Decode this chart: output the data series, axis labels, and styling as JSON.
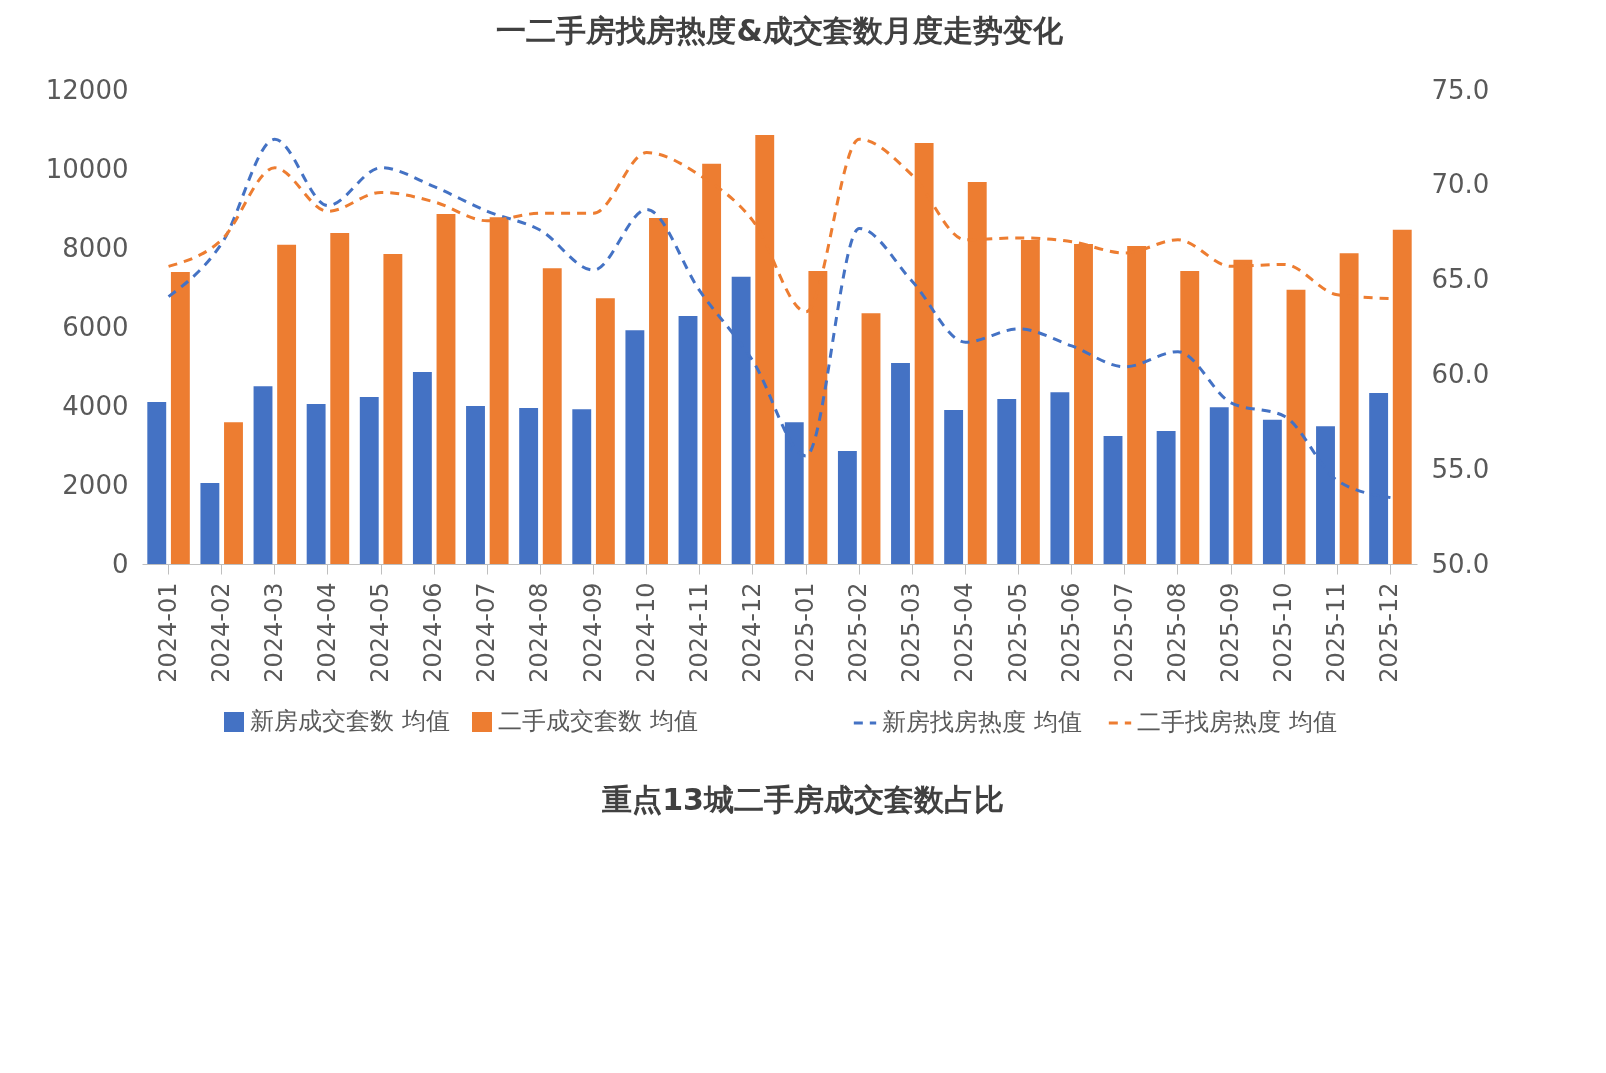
{
  "chart_data": {
    "type": "bar",
    "title": "一二手房找房热度&成交套数月度走势变化",
    "categories": [
      "2024-01",
      "2024-02",
      "2024-03",
      "2024-04",
      "2024-05",
      "2024-06",
      "2024-07",
      "2024-08",
      "2024-09",
      "2024-10",
      "2024-11",
      "2024-12",
      "2025-01",
      "2025-02",
      "2025-03",
      "2025-04",
      "2025-05",
      "2025-06",
      "2025-07",
      "2025-08",
      "2025-09",
      "2025-10",
      "2025-11",
      "2025-12"
    ],
    "series": [
      {
        "name": "新房成交套数 均值",
        "color": "#4472c4",
        "values": [
          4100,
          2050,
          4500,
          4050,
          4230,
          4860,
          4000,
          3950,
          3920,
          5920,
          6280,
          7270,
          3590,
          2860,
          5090,
          3900,
          4180,
          4350,
          3240,
          3370,
          3970,
          3650,
          3490,
          4330
        ]
      },
      {
        "name": "二手成交套数 均值",
        "color": "#ed7d31",
        "values": [
          7390,
          3590,
          8080,
          8380,
          7850,
          8860,
          8780,
          7490,
          6730,
          8760,
          10130,
          10860,
          7420,
          6350,
          10660,
          9670,
          8200,
          8100,
          8050,
          7420,
          7700,
          6940,
          7870,
          8460
        ]
      },
      {
        "name": "新房找房热度 均值",
        "type": "line",
        "axis": "y2",
        "line_style": "dashed",
        "color": "#4472c4",
        "values": [
          64.1,
          66.9,
          72.4,
          68.9,
          70.9,
          69.9,
          68.6,
          67.6,
          65.5,
          68.7,
          64.4,
          60.7,
          55.7,
          67.7,
          64.9,
          61.7,
          62.4,
          61.5,
          60.4,
          61.2,
          58.5,
          57.8,
          54.4,
          53.5
        ]
      },
      {
        "name": "二手找房热度 均值",
        "type": "line",
        "axis": "y2",
        "line_style": "dashed",
        "color": "#ed7d31",
        "values": [
          65.7,
          67.1,
          70.9,
          68.6,
          69.6,
          69.1,
          68.1,
          68.5,
          68.5,
          71.7,
          70.5,
          68.1,
          63.3,
          72.4,
          70.5,
          67.1,
          67.2,
          67.0,
          66.4,
          67.1,
          65.7,
          65.8,
          64.2,
          64.0
        ]
      }
    ],
    "ylim": [
      0,
      12000
    ],
    "yticks": [
      0,
      2000,
      4000,
      6000,
      8000,
      10000,
      12000
    ],
    "y2lim": [
      50,
      75
    ],
    "y2ticks": [
      {
        "value": 50,
        "label": "50.0"
      },
      {
        "value": 55,
        "label": "55.0"
      },
      {
        "value": 60,
        "label": "60.0"
      },
      {
        "value": 65,
        "label": "65.0"
      },
      {
        "value": 70,
        "label": "70.0"
      },
      {
        "value": 75,
        "label": "75.0"
      }
    ],
    "marker": "none",
    "legend": "bottom",
    "annotations": [
      "重点13城二手房成交套数占比"
    ]
  }
}
